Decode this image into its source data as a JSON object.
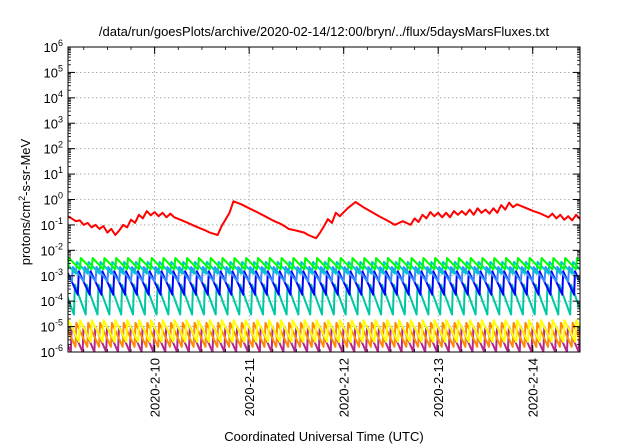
{
  "chart_data": {
    "type": "line",
    "title": "/data/run/goesPlots/archive/2020-02-14/12:00/bryn/../flux/5daysMarsFluxes.txt",
    "xlabel": "Coordinated Universal Time (UTC)",
    "ylabel": "protons/cm²-s-sr-MeV",
    "ylabel_parts": {
      "before": "protons/cm",
      "sup": "2",
      "after": "-s-sr-MeV"
    },
    "y_scale": "log",
    "ylim": [
      1e-06,
      1000000.0
    ],
    "y_ticks": [
      {
        "value": 1e-06,
        "base": "10",
        "exp": "-6"
      },
      {
        "value": 1e-05,
        "base": "10",
        "exp": "-5"
      },
      {
        "value": 0.0001,
        "base": "10",
        "exp": "-4"
      },
      {
        "value": 0.001,
        "base": "10",
        "exp": "-3"
      },
      {
        "value": 0.01,
        "base": "10",
        "exp": "-2"
      },
      {
        "value": 0.1,
        "base": "10",
        "exp": "-1"
      },
      {
        "value": 1,
        "base": "10",
        "exp": "0"
      },
      {
        "value": 10,
        "base": "10",
        "exp": "1"
      },
      {
        "value": 100,
        "base": "10",
        "exp": "2"
      },
      {
        "value": 1000,
        "base": "10",
        "exp": "3"
      },
      {
        "value": 10000,
        "base": "10",
        "exp": "4"
      },
      {
        "value": 100000,
        "base": "10",
        "exp": "5"
      },
      {
        "value": 1000000,
        "base": "10",
        "exp": "6"
      }
    ],
    "xlim": [
      "2020-02-09T02:00",
      "2020-02-14T12:00"
    ],
    "x_ticks": [
      {
        "label": "2020-2-10",
        "value": "2020-02-10T00:00"
      },
      {
        "label": "2020-2-11",
        "value": "2020-02-11T00:00"
      },
      {
        "label": "2020-2-12",
        "value": "2020-02-12T00:00"
      },
      {
        "label": "2020-2-13",
        "value": "2020-02-13T00:00"
      },
      {
        "label": "2020-2-14",
        "value": "2020-02-14T00:00"
      }
    ],
    "grid": true,
    "legend": "none",
    "series": [
      {
        "color": "#ff0000",
        "x": [
          "2020-02-09T02:00",
          "2020-02-09T04:00",
          "2020-02-09T05:00",
          "2020-02-09T06:00",
          "2020-02-09T07:00",
          "2020-02-09T08:00",
          "2020-02-09T09:00",
          "2020-02-09T10:00",
          "2020-02-09T11:00",
          "2020-02-09T12:00",
          "2020-02-09T13:00",
          "2020-02-09T14:00",
          "2020-02-09T15:00",
          "2020-02-09T16:00",
          "2020-02-09T17:00",
          "2020-02-09T18:00",
          "2020-02-09T19:00",
          "2020-02-09T20:00",
          "2020-02-09T21:00",
          "2020-02-09T22:00",
          "2020-02-09T23:00",
          "2020-02-10T00:00",
          "2020-02-10T01:00",
          "2020-02-10T02:00",
          "2020-02-10T03:00",
          "2020-02-10T04:00",
          "2020-02-10T05:00",
          "2020-02-10T07:00",
          "2020-02-10T09:00",
          "2020-02-10T11:00",
          "2020-02-10T13:00",
          "2020-02-10T14:00",
          "2020-02-10T16:00",
          "2020-02-10T17:00",
          "2020-02-10T18:00",
          "2020-02-10T19:00",
          "2020-02-10T20:00",
          "2020-02-10T22:00",
          "2020-02-11T00:00",
          "2020-02-11T02:00",
          "2020-02-11T04:00",
          "2020-02-11T06:00",
          "2020-02-11T08:00",
          "2020-02-11T09:00",
          "2020-02-11T10:00",
          "2020-02-11T12:00",
          "2020-02-11T14:00",
          "2020-02-11T15:00",
          "2020-02-11T17:00",
          "2020-02-11T18:00",
          "2020-02-11T19:00",
          "2020-02-11T20:00",
          "2020-02-11T21:00",
          "2020-02-11T22:00",
          "2020-02-11T23:00",
          "2020-02-12T01:00",
          "2020-02-12T03:00",
          "2020-02-12T05:00",
          "2020-02-12T07:00",
          "2020-02-12T09:00",
          "2020-02-12T11:00",
          "2020-02-12T13:00",
          "2020-02-12T15:00",
          "2020-02-12T17:00",
          "2020-02-12T18:00",
          "2020-02-12T19:00",
          "2020-02-12T20:00",
          "2020-02-12T21:00",
          "2020-02-12T22:00",
          "2020-02-12T23:00",
          "2020-02-13T00:00",
          "2020-02-13T01:00",
          "2020-02-13T02:00",
          "2020-02-13T03:00",
          "2020-02-13T04:00",
          "2020-02-13T05:00",
          "2020-02-13T06:00",
          "2020-02-13T07:00",
          "2020-02-13T08:00",
          "2020-02-13T09:00",
          "2020-02-13T10:00",
          "2020-02-13T11:00",
          "2020-02-13T12:00",
          "2020-02-13T13:00",
          "2020-02-13T14:00",
          "2020-02-13T15:00",
          "2020-02-13T16:00",
          "2020-02-13T17:00",
          "2020-02-13T18:00",
          "2020-02-13T19:00",
          "2020-02-13T20:00",
          "2020-02-13T22:00",
          "2020-02-14T00:00",
          "2020-02-14T02:00",
          "2020-02-14T04:00",
          "2020-02-14T05:00",
          "2020-02-14T06:00",
          "2020-02-14T07:00",
          "2020-02-14T08:00",
          "2020-02-14T09:00",
          "2020-02-14T10:00",
          "2020-02-14T11:00",
          "2020-02-14T12:00"
        ],
        "y": [
          0.22,
          0.14,
          0.15,
          0.1,
          0.12,
          0.08,
          0.1,
          0.07,
          0.09,
          0.05,
          0.07,
          0.04,
          0.06,
          0.1,
          0.08,
          0.16,
          0.12,
          0.25,
          0.18,
          0.35,
          0.24,
          0.32,
          0.22,
          0.3,
          0.2,
          0.28,
          0.2,
          0.15,
          0.11,
          0.08,
          0.06,
          0.05,
          0.04,
          0.09,
          0.16,
          0.3,
          0.85,
          0.65,
          0.45,
          0.32,
          0.22,
          0.15,
          0.11,
          0.09,
          0.07,
          0.06,
          0.05,
          0.04,
          0.03,
          0.05,
          0.09,
          0.17,
          0.12,
          0.3,
          0.22,
          0.45,
          0.8,
          0.5,
          0.33,
          0.22,
          0.15,
          0.1,
          0.14,
          0.1,
          0.18,
          0.13,
          0.25,
          0.18,
          0.32,
          0.22,
          0.3,
          0.2,
          0.3,
          0.2,
          0.35,
          0.25,
          0.35,
          0.25,
          0.4,
          0.25,
          0.45,
          0.3,
          0.4,
          0.28,
          0.45,
          0.3,
          0.6,
          0.4,
          0.75,
          0.5,
          0.65,
          0.48,
          0.36,
          0.28,
          0.2,
          0.28,
          0.18,
          0.25,
          0.16,
          0.22,
          0.15,
          0.25,
          0.17
        ]
      },
      {
        "color": "#00ff00",
        "y_peak": 0.005,
        "y_trough": 0.0018,
        "phase_h": 0
      },
      {
        "color": "#00c8c8",
        "y_peak": 0.0035,
        "y_trough": 0.0012,
        "phase_h": 1
      },
      {
        "color": "#3b8cff",
        "y_peak": 0.0022,
        "y_trough": 0.0006,
        "phase_h": 2
      },
      {
        "color": "#0000ff",
        "y_peak": 0.0015,
        "y_trough": 0.00018,
        "phase_h": 0.5
      },
      {
        "color": "#00c8a0",
        "y_peak": 0.00045,
        "y_trough": 3e-05,
        "phase_h": 1.5
      },
      {
        "color": "#ffff00",
        "y_peak": 1.8e-05,
        "y_trough": 2.5e-06,
        "phase_h": 0.2
      },
      {
        "color": "#ff8c00",
        "y_peak": 1.4e-05,
        "y_trough": 1.6e-06,
        "phase_h": 1.1
      },
      {
        "color": "#b4288c",
        "y_peak": 1e-05,
        "y_trough": 1e-06,
        "phase_h": 2.3
      }
    ]
  }
}
